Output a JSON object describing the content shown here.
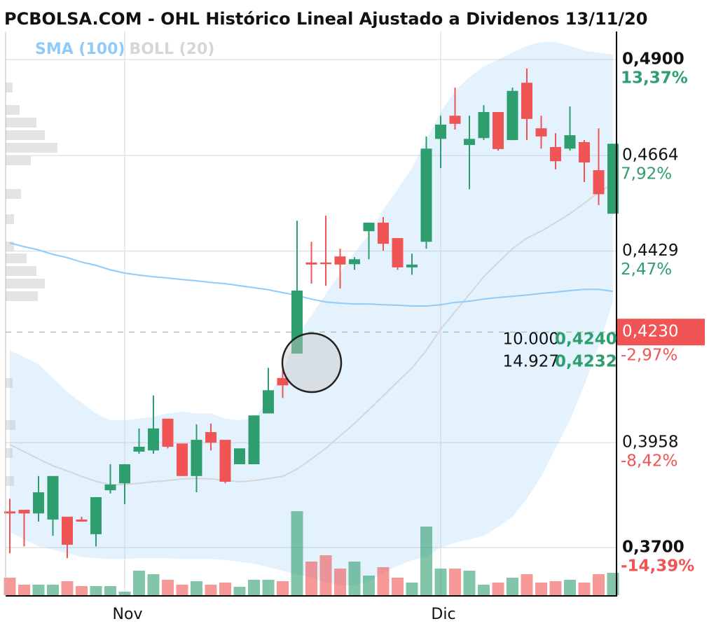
{
  "chart_data": {
    "type": "candlestick",
    "title": "PCBOLSA.COM - OHL Histórico Lineal Ajustado a Dividenos 13/11/20",
    "indicators": [
      {
        "name": "SMA (100)",
        "color": "#90caf9"
      },
      {
        "name": "BOLL (20)",
        "color": "#d6d6d6"
      }
    ],
    "categories": [
      null,
      null,
      null,
      null,
      null,
      null,
      null,
      null,
      "Nov",
      null,
      null,
      null,
      null,
      null,
      null,
      null,
      null,
      null,
      null,
      null,
      null,
      null,
      null,
      null,
      null,
      null,
      null,
      null,
      null,
      null,
      "Dic",
      null,
      null,
      null,
      null,
      null,
      null,
      null,
      null,
      null,
      null,
      null,
      null
    ],
    "open": [
      0.3789,
      0.3793,
      0.3784,
      0.3769,
      0.3776,
      0.3769,
      0.3733,
      0.3841,
      0.3858,
      0.3936,
      0.3939,
      0.4017,
      0.3956,
      0.3876,
      0.3984,
      0.3965,
      0.3905,
      0.3905,
      0.403,
      0.4117,
      0.4177,
      0.4401,
      0.4401,
      0.4416,
      0.4397,
      0.4478,
      0.4499,
      0.4461,
      0.4389,
      0.4452,
      0.4705,
      0.4762,
      0.469,
      0.4707,
      0.4771,
      0.4702,
      0.4843,
      0.4731,
      0.4685,
      0.4681,
      0.4697,
      0.4628,
      0.4521
    ],
    "high": [
      0.382,
      0.3793,
      0.3876,
      0.3876,
      0.3776,
      0.3776,
      0.3824,
      0.3905,
      0.3905,
      0.3993,
      0.4074,
      0.4017,
      0.3956,
      0.4003,
      0.4005,
      0.3965,
      0.3944,
      0.4025,
      0.4142,
      0.4142,
      0.4504,
      0.4452,
      0.4516,
      0.4435,
      0.4414,
      0.4499,
      0.4513,
      0.4461,
      0.4423,
      0.4711,
      0.4762,
      0.4831,
      0.4762,
      0.4788,
      0.4771,
      0.4831,
      0.4878,
      0.4762,
      0.4719,
      0.4785,
      0.4702,
      0.4731,
      0.4693
    ],
    "low": [
      0.3686,
      0.3703,
      0.3764,
      0.3729,
      0.3674,
      0.3764,
      0.3703,
      0.3833,
      0.3807,
      0.3931,
      0.3931,
      0.3944,
      0.3876,
      0.3836,
      0.3939,
      0.3858,
      0.3905,
      0.3905,
      0.403,
      0.4068,
      0.4177,
      0.4349,
      0.4344,
      0.4337,
      0.4383,
      0.4409,
      0.443,
      0.4383,
      0.4371,
      0.4435,
      0.4633,
      0.4728,
      0.4581,
      0.4702,
      0.4676,
      0.4702,
      0.4702,
      0.4681,
      0.463,
      0.4676,
      0.4599,
      0.4542,
      0.4521
    ],
    "close": [
      0.3784,
      0.3784,
      0.3836,
      0.3876,
      0.3707,
      0.3764,
      0.3824,
      0.3855,
      0.3905,
      0.3948,
      0.3993,
      0.3948,
      0.3876,
      0.3965,
      0.3958,
      0.3862,
      0.3944,
      0.4025,
      0.4087,
      0.4099,
      0.4332,
      0.4396,
      0.4397,
      0.4396,
      0.4409,
      0.4499,
      0.4447,
      0.4389,
      0.4396,
      0.4681,
      0.474,
      0.4742,
      0.4705,
      0.4771,
      0.468,
      0.4823,
      0.4754,
      0.4711,
      0.465,
      0.4714,
      0.4647,
      0.4569,
      0.4693
    ],
    "volume": [
      25,
      15,
      15,
      15,
      20,
      13,
      13,
      13,
      5,
      35,
      30,
      22,
      15,
      20,
      15,
      18,
      12,
      22,
      22,
      20,
      120,
      48,
      57,
      38,
      48,
      28,
      40,
      25,
      18,
      98,
      38,
      38,
      35,
      15,
      18,
      25,
      30,
      18,
      20,
      22,
      18,
      30,
      32
    ],
    "sma": [
      0.4449,
      0.444,
      0.4432,
      0.4421,
      0.4413,
      0.4402,
      0.4394,
      0.4383,
      0.4375,
      0.437,
      0.4366,
      0.4363,
      0.4359,
      0.4356,
      0.4352,
      0.4349,
      0.4344,
      0.4339,
      0.4334,
      0.4327,
      0.432,
      0.4311,
      0.4304,
      0.4301,
      0.4299,
      0.4299,
      0.4297,
      0.4296,
      0.4294,
      0.4294,
      0.4297,
      0.4303,
      0.4306,
      0.4311,
      0.4315,
      0.4318,
      0.4321,
      0.4325,
      0.4328,
      0.4332,
      0.4335,
      0.4335,
      0.433
    ],
    "boll_upper": [
      0.4185,
      0.4168,
      0.4151,
      0.4117,
      0.4082,
      0.4056,
      0.403,
      0.4013,
      0.4013,
      0.4017,
      0.4022,
      0.403,
      0.4034,
      0.403,
      0.403,
      0.4017,
      0.4013,
      0.4017,
      0.4065,
      0.4134,
      0.422,
      0.4271,
      0.4323,
      0.4375,
      0.4426,
      0.4469,
      0.453,
      0.4581,
      0.4633,
      0.4702,
      0.4771,
      0.4823,
      0.4857,
      0.4883,
      0.49,
      0.4917,
      0.4934,
      0.4943,
      0.4943,
      0.4934,
      0.4922,
      0.4917,
      0.4912
    ],
    "boll_middle": [
      0.3953,
      0.3936,
      0.3918,
      0.3901,
      0.3889,
      0.3875,
      0.3863,
      0.3855,
      0.3855,
      0.3858,
      0.3862,
      0.3865,
      0.3869,
      0.387,
      0.3869,
      0.3865,
      0.3862,
      0.3865,
      0.387,
      0.3875,
      0.3893,
      0.3918,
      0.3944,
      0.3975,
      0.4005,
      0.4039,
      0.4073,
      0.4108,
      0.4142,
      0.4185,
      0.4237,
      0.428,
      0.4323,
      0.4366,
      0.4401,
      0.4435,
      0.4461,
      0.4478,
      0.4499,
      0.4521,
      0.4547,
      0.4573,
      0.4595
    ],
    "boll_lower": [
      0.3738,
      0.372,
      0.3703,
      0.3695,
      0.3686,
      0.3677,
      0.3674,
      0.3672,
      0.3672,
      0.3674,
      0.3674,
      0.3674,
      0.3672,
      0.3672,
      0.3672,
      0.3669,
      0.3665,
      0.366,
      0.3652,
      0.3643,
      0.3634,
      0.3626,
      0.3614,
      0.3607,
      0.3607,
      0.3617,
      0.3638,
      0.3655,
      0.3669,
      0.3677,
      0.37,
      0.3712,
      0.372,
      0.3729,
      0.3751,
      0.3776,
      0.382,
      0.3875,
      0.3944,
      0.4013,
      0.4099,
      0.4194,
      0.4306
    ],
    "up_color": "#2e9e6e",
    "down_color": "#f05454",
    "ylim": [
      0.3583,
      0.4969
    ],
    "yticks": [
      {
        "value": 0.49,
        "label": "0,4900"
      },
      {
        "value": 0.4664,
        "label": "0,4664"
      },
      {
        "value": 0.4429,
        "label": "0,4429"
      },
      {
        "value": 0.3958,
        "label": "0,3958"
      },
      {
        "value": 0.37,
        "label": "0,3700"
      }
    ],
    "ytick_changes": [
      {
        "value": 13.37,
        "label": "13,37%"
      },
      {
        "value": 7.92,
        "label": "7,92%"
      },
      {
        "value": 2.47,
        "label": "2,47%"
      },
      {
        "value": -8.42,
        "label": "-8,42%"
      },
      {
        "value": -14.39,
        "label": "-14,39%"
      }
    ],
    "last_price": {
      "value": 0.423,
      "label": "0,4230"
    },
    "last_change": {
      "value": -2.97,
      "label": "-2,97%"
    },
    "order_book": [
      {
        "size": {
          "value": 10000,
          "label": "10.000"
        },
        "price": {
          "value": 0.424,
          "label": "0,4240"
        }
      },
      {
        "size": {
          "value": 14927,
          "label": "14.927"
        },
        "price": {
          "value": 0.4232,
          "label": "0,4232"
        }
      }
    ],
    "grid": true
  }
}
